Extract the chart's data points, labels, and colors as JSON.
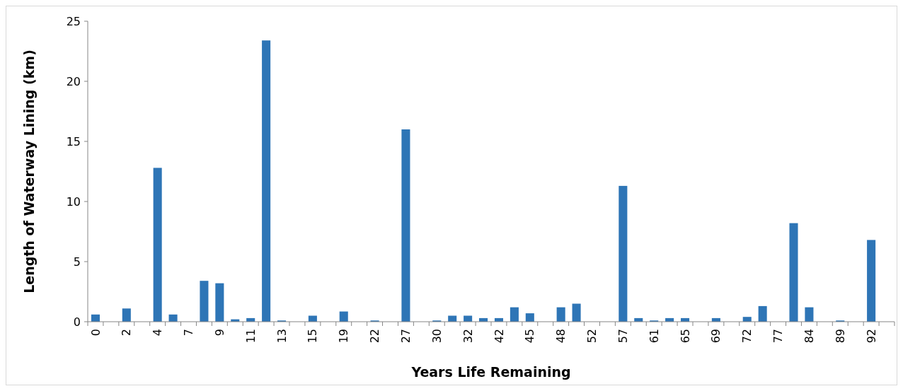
{
  "chart_data": {
    "type": "bar",
    "xlabel": "Years Life Remaining",
    "ylabel": "Length of Waterway Lining (km)",
    "categories": [
      "0",
      null,
      "2",
      null,
      "4",
      null,
      "7",
      null,
      "9",
      null,
      "11",
      null,
      "13",
      null,
      "15",
      null,
      "19",
      null,
      "22",
      null,
      "27",
      null,
      "30",
      null,
      "32",
      null,
      "42",
      null,
      "45",
      null,
      "48",
      null,
      "52",
      null,
      "57",
      null,
      "61",
      null,
      "65",
      null,
      "69",
      null,
      "72",
      null,
      "77",
      null,
      "84",
      null,
      "89",
      null,
      "92",
      null
    ],
    "values": [
      0.6,
      0,
      1.1,
      0,
      12.8,
      0.6,
      0,
      3.4,
      3.2,
      0.2,
      0.3,
      23.4,
      0.1,
      0,
      0.5,
      0,
      0.85,
      0,
      0.1,
      0,
      16,
      0,
      0.1,
      0.5,
      0.5,
      0.3,
      0.3,
      1.2,
      0.7,
      0,
      1.2,
      1.5,
      0,
      0,
      11.3,
      0.3,
      0.1,
      0.3,
      0.3,
      0,
      0.3,
      0,
      0.4,
      1.3,
      0,
      8.2,
      1.2,
      0,
      0.1,
      0,
      6.8,
      0
    ],
    "color": "#2e75b6",
    "ylim": [
      0,
      25
    ],
    "yticks": [
      0,
      5,
      10,
      15,
      20,
      25
    ],
    "grid": false
  }
}
